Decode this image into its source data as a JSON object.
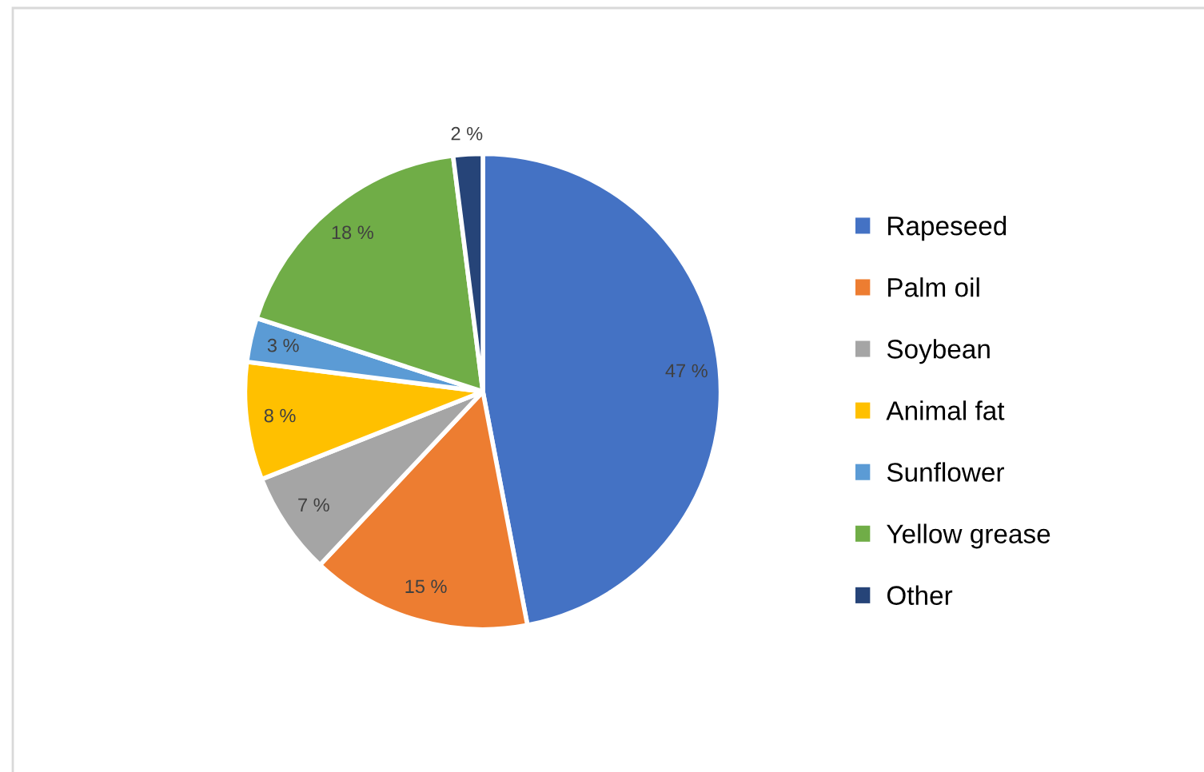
{
  "chart_data": {
    "type": "pie",
    "categories": [
      "Rapeseed",
      "Palm oil",
      "Soybean",
      "Animal fat",
      "Sunflower",
      "Yellow grease",
      "Other"
    ],
    "values": [
      47,
      15,
      7,
      8,
      3,
      18,
      2
    ],
    "colors": [
      "#4472c4",
      "#ed7d31",
      "#a5a5a5",
      "#ffc000",
      "#5b9bd5",
      "#70ad47",
      "#264478"
    ],
    "value_labels": [
      "47 %",
      "15 %",
      "7 %",
      "8 %",
      "3 %",
      "18 %",
      "2 %"
    ],
    "legend": "right"
  }
}
